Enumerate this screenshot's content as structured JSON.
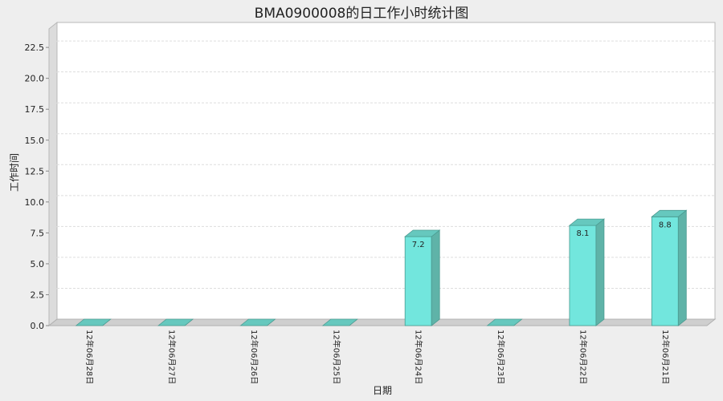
{
  "chart_data": {
    "type": "bar",
    "title": "BMA0900008的日工作小时统计图",
    "xlabel": "日期",
    "ylabel": "工作时间",
    "categories": [
      "12年06月28日",
      "12年06月27日",
      "12年06月26日",
      "12年06月25日",
      "12年06月24日",
      "12年06月23日",
      "12年06月22日",
      "12年06月21日"
    ],
    "values": [
      0,
      0,
      0,
      0,
      7.2,
      0,
      8.1,
      8.8
    ],
    "data_labels": [
      "",
      "",
      "",
      "",
      "7.2",
      "",
      "8.1",
      "8.8"
    ],
    "ylim": [
      0,
      24
    ],
    "yticks": [
      "0.0",
      "2.5",
      "5.0",
      "7.5",
      "10.0",
      "12.5",
      "15.0",
      "17.5",
      "20.0",
      "22.5"
    ],
    "grid": true,
    "legend": "none",
    "bar_color": "#72e6dd",
    "bar_side_color": "#5fb3a8",
    "bar_top_color": "#66c8be"
  }
}
